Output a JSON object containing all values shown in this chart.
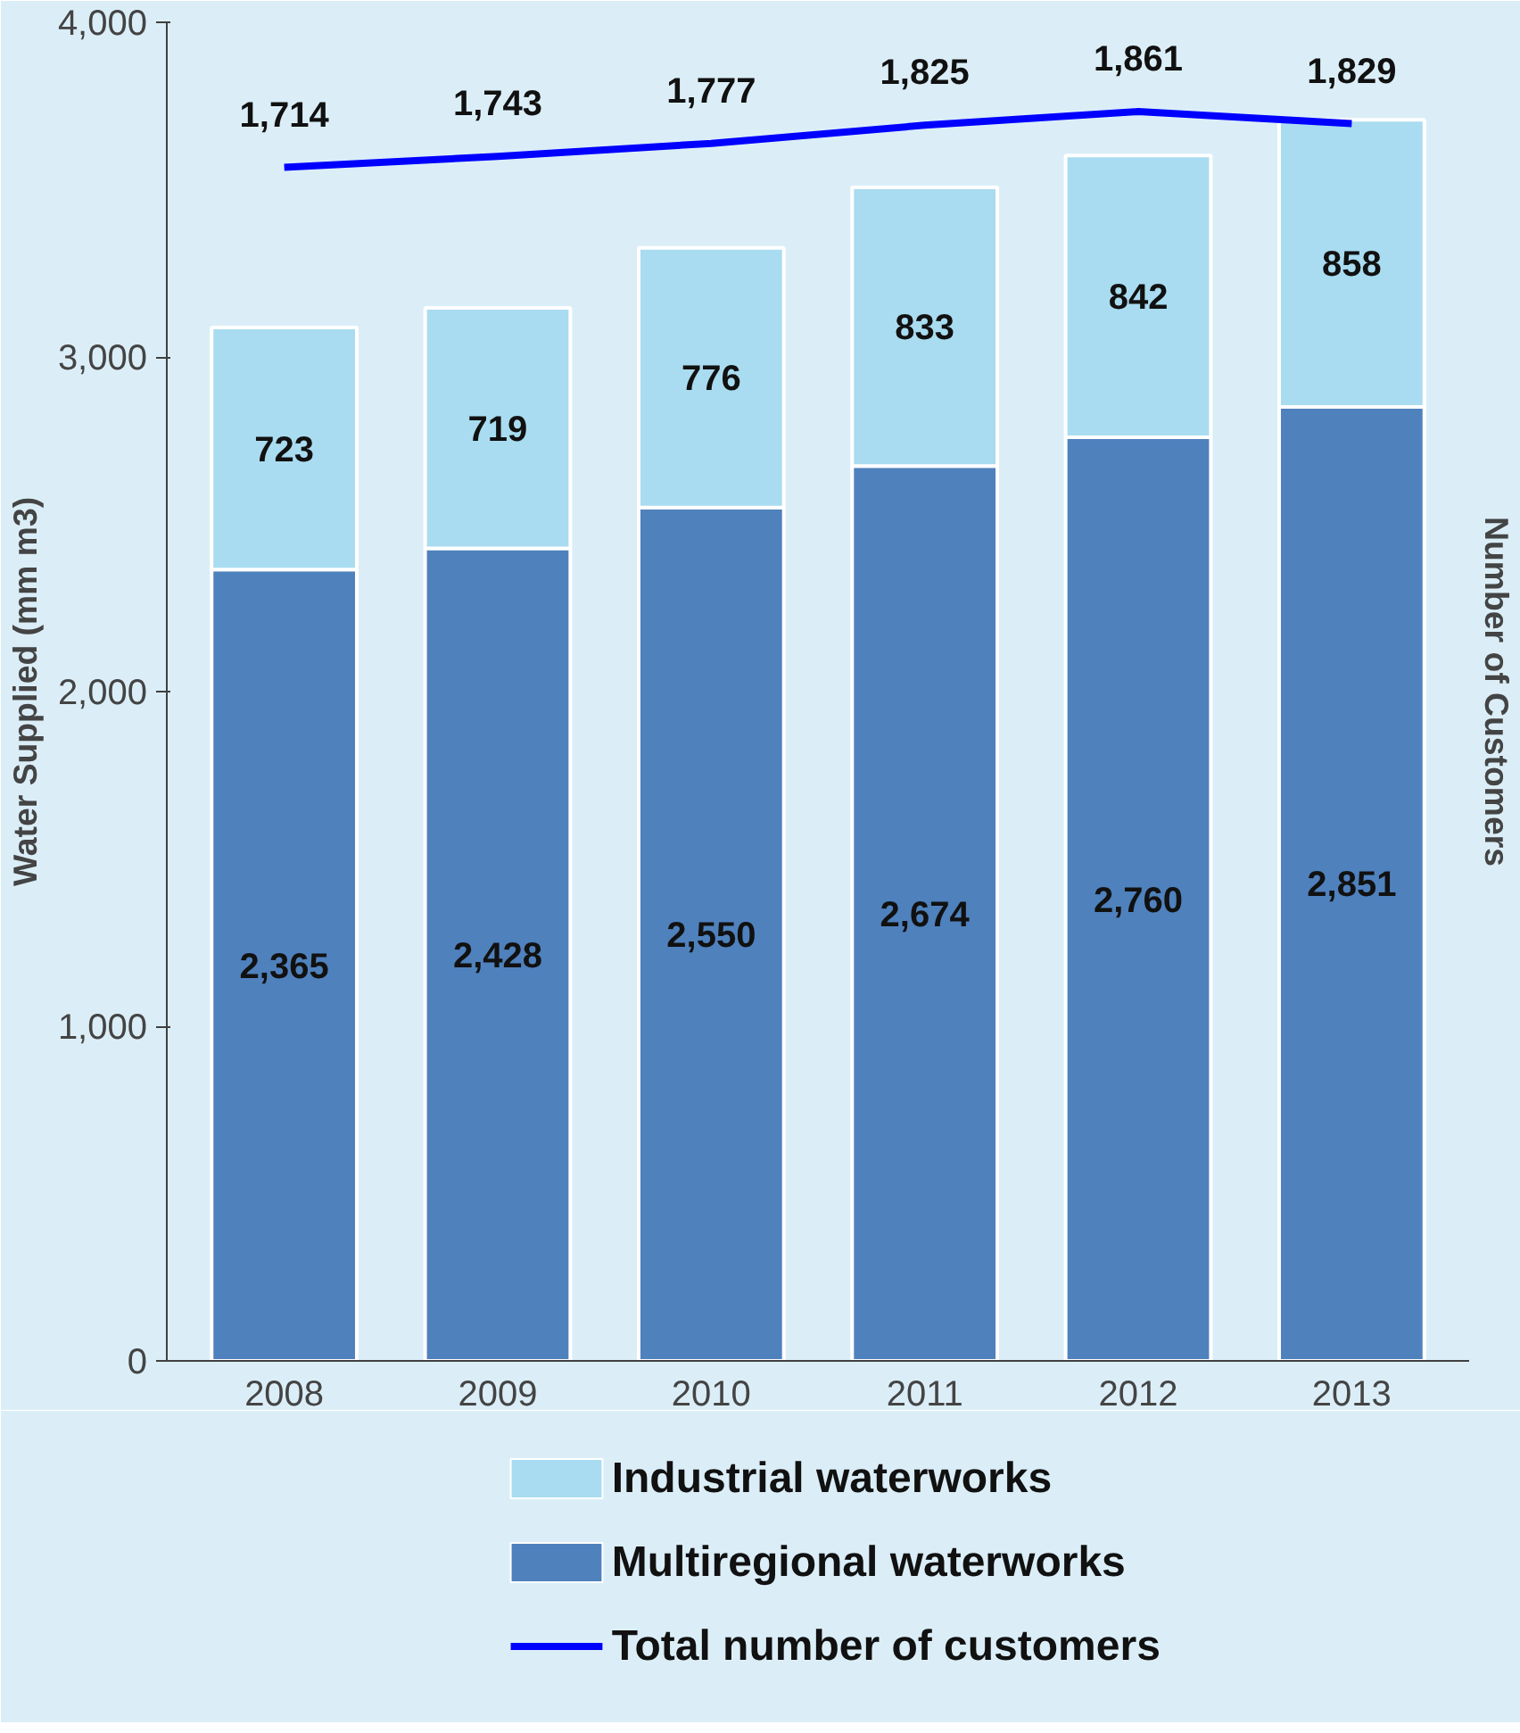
{
  "chart_data": {
    "type": "bar",
    "stacked": true,
    "ylabel": "Water Supplied (mm m3)",
    "y2label": "Number of Customers",
    "categories": [
      "2008",
      "2009",
      "2010",
      "2011",
      "2012",
      "2013"
    ],
    "series": [
      {
        "name": "Multiregional waterworks",
        "color": "#4f81bd",
        "values": [
          2365,
          2428,
          2550,
          2674,
          2760,
          2851
        ],
        "value_labels": [
          "2,365",
          "2,428",
          "2,550",
          "2,674",
          "2,760",
          "2,851"
        ]
      },
      {
        "name": "Industrial waterworks",
        "color": "#a9dcf0",
        "values": [
          723,
          719,
          776,
          833,
          842,
          858
        ],
        "value_labels": [
          "723",
          "719",
          "776",
          "833",
          "842",
          "858"
        ]
      },
      {
        "name": "Total number of customers",
        "type": "line",
        "axis": "y2",
        "color": "#0000ff",
        "values": [
          1714,
          1743,
          1777,
          1825,
          1861,
          1829
        ],
        "value_labels": [
          "1,714",
          "1,743",
          "1,777",
          "1,825",
          "1,861",
          "1,829"
        ]
      }
    ],
    "ylim": [
      0,
      4000
    ],
    "yticks": [
      {
        "value": 0,
        "label": "0"
      },
      {
        "value": 1000,
        "label": "1,000"
      },
      {
        "value": 2000,
        "label": "2,000"
      },
      {
        "value": 3000,
        "label": "3,000"
      },
      {
        "value": 4000,
        "label": "4,000"
      }
    ],
    "grid": false,
    "legend": "bottom"
  }
}
